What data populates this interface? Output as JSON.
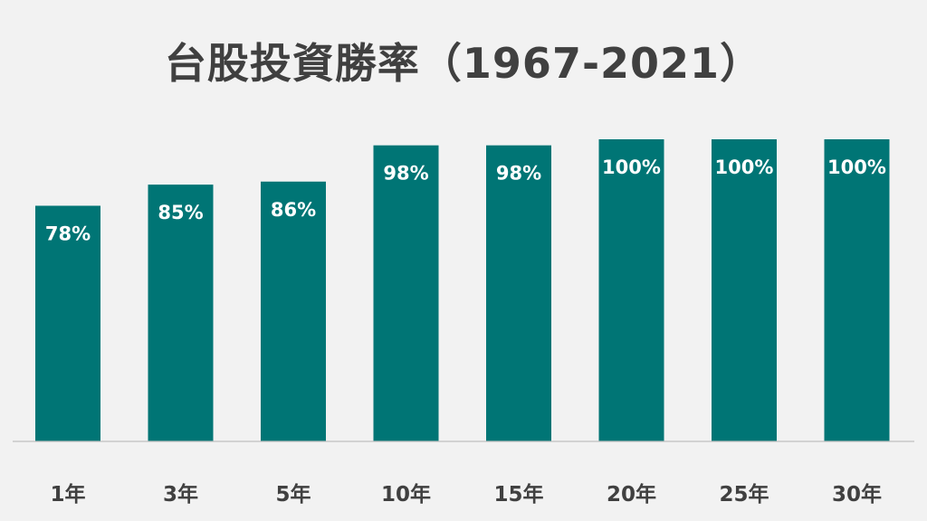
{
  "chart_data": {
    "type": "bar",
    "title": "台股投資勝率（1967-2021）",
    "categories": [
      "1年",
      "3年",
      "5年",
      "10年",
      "15年",
      "20年",
      "25年",
      "30年"
    ],
    "series": [
      {
        "values": [
          78,
          85,
          86,
          98,
          98,
          100,
          100,
          100
        ],
        "labels": [
          "78%",
          "85%",
          "86%",
          "98%",
          "98%",
          "100%",
          "100%",
          "100%"
        ]
      }
    ],
    "ylim": [
      0,
      100
    ],
    "unit": "%",
    "grid": false,
    "legend": "none",
    "bar_color": "#007575",
    "label_color": "#ffffff",
    "axis_color": "#bfbfbf",
    "text_color": "#404040"
  }
}
